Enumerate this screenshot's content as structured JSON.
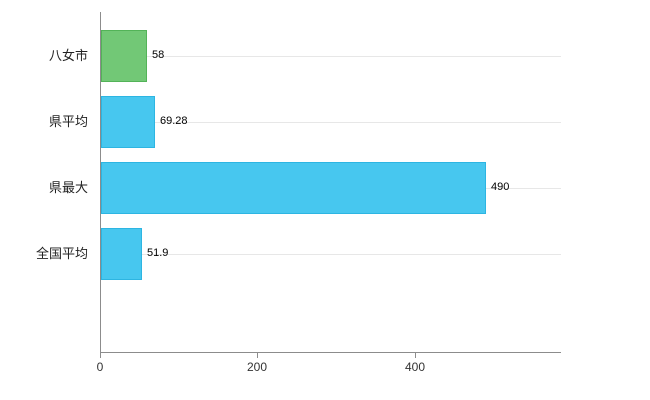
{
  "chart_data": {
    "type": "bar",
    "orientation": "horizontal",
    "title": "",
    "xlabel": "",
    "ylabel": "",
    "categories": [
      "八女市",
      "県平均",
      "県最大",
      "全国平均"
    ],
    "values": [
      58,
      69.28,
      490,
      51.9
    ],
    "value_labels": [
      "58",
      "69.28",
      "490",
      "51.9"
    ],
    "bar_fill_colors": [
      "#72c876",
      "#47c7ef",
      "#47c7ef",
      "#47c7ef"
    ],
    "bar_border_colors": [
      "#53b358",
      "#2db5e2",
      "#2db5e2",
      "#2db5e2"
    ],
    "x_ticks": [
      0,
      200,
      400
    ],
    "x_tick_labels": [
      "0",
      "200",
      "400"
    ],
    "xlim": [
      0,
      585
    ],
    "grid": "horizontal",
    "legend": "none",
    "background_color": "#ffffff"
  }
}
